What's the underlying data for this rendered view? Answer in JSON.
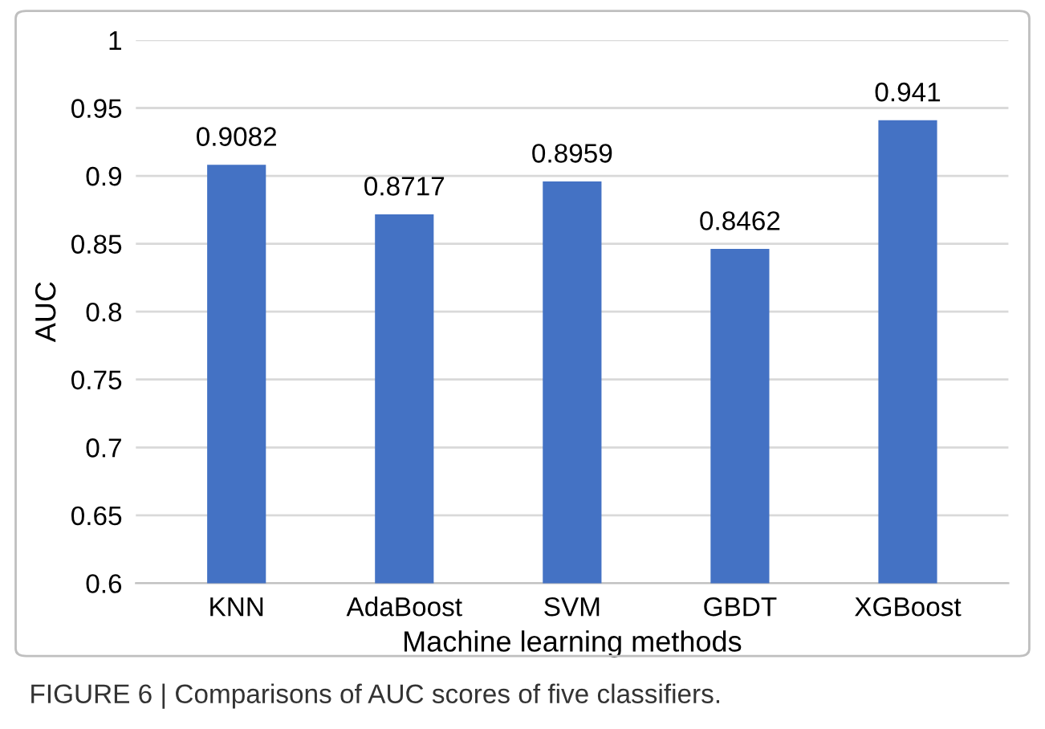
{
  "chart_data": {
    "type": "bar",
    "xlabel": "Machine learning methods",
    "ylabel": "AUC",
    "categories": [
      "KNN",
      "AdaBoost",
      "SVM",
      "GBDT",
      "XGBoost"
    ],
    "values": [
      0.9082,
      0.8717,
      0.8959,
      0.8462,
      0.941
    ],
    "color": "#4472c4",
    "ylim": [
      0.6,
      1
    ],
    "yticks": [
      0.6,
      0.65,
      0.7,
      0.75,
      0.8,
      0.85,
      0.9,
      0.95,
      1
    ],
    "grid": "y",
    "data_labels": true,
    "annotations": [
      "FIGURE 6 | Comparisons of AUC scores of five classifiers."
    ]
  }
}
